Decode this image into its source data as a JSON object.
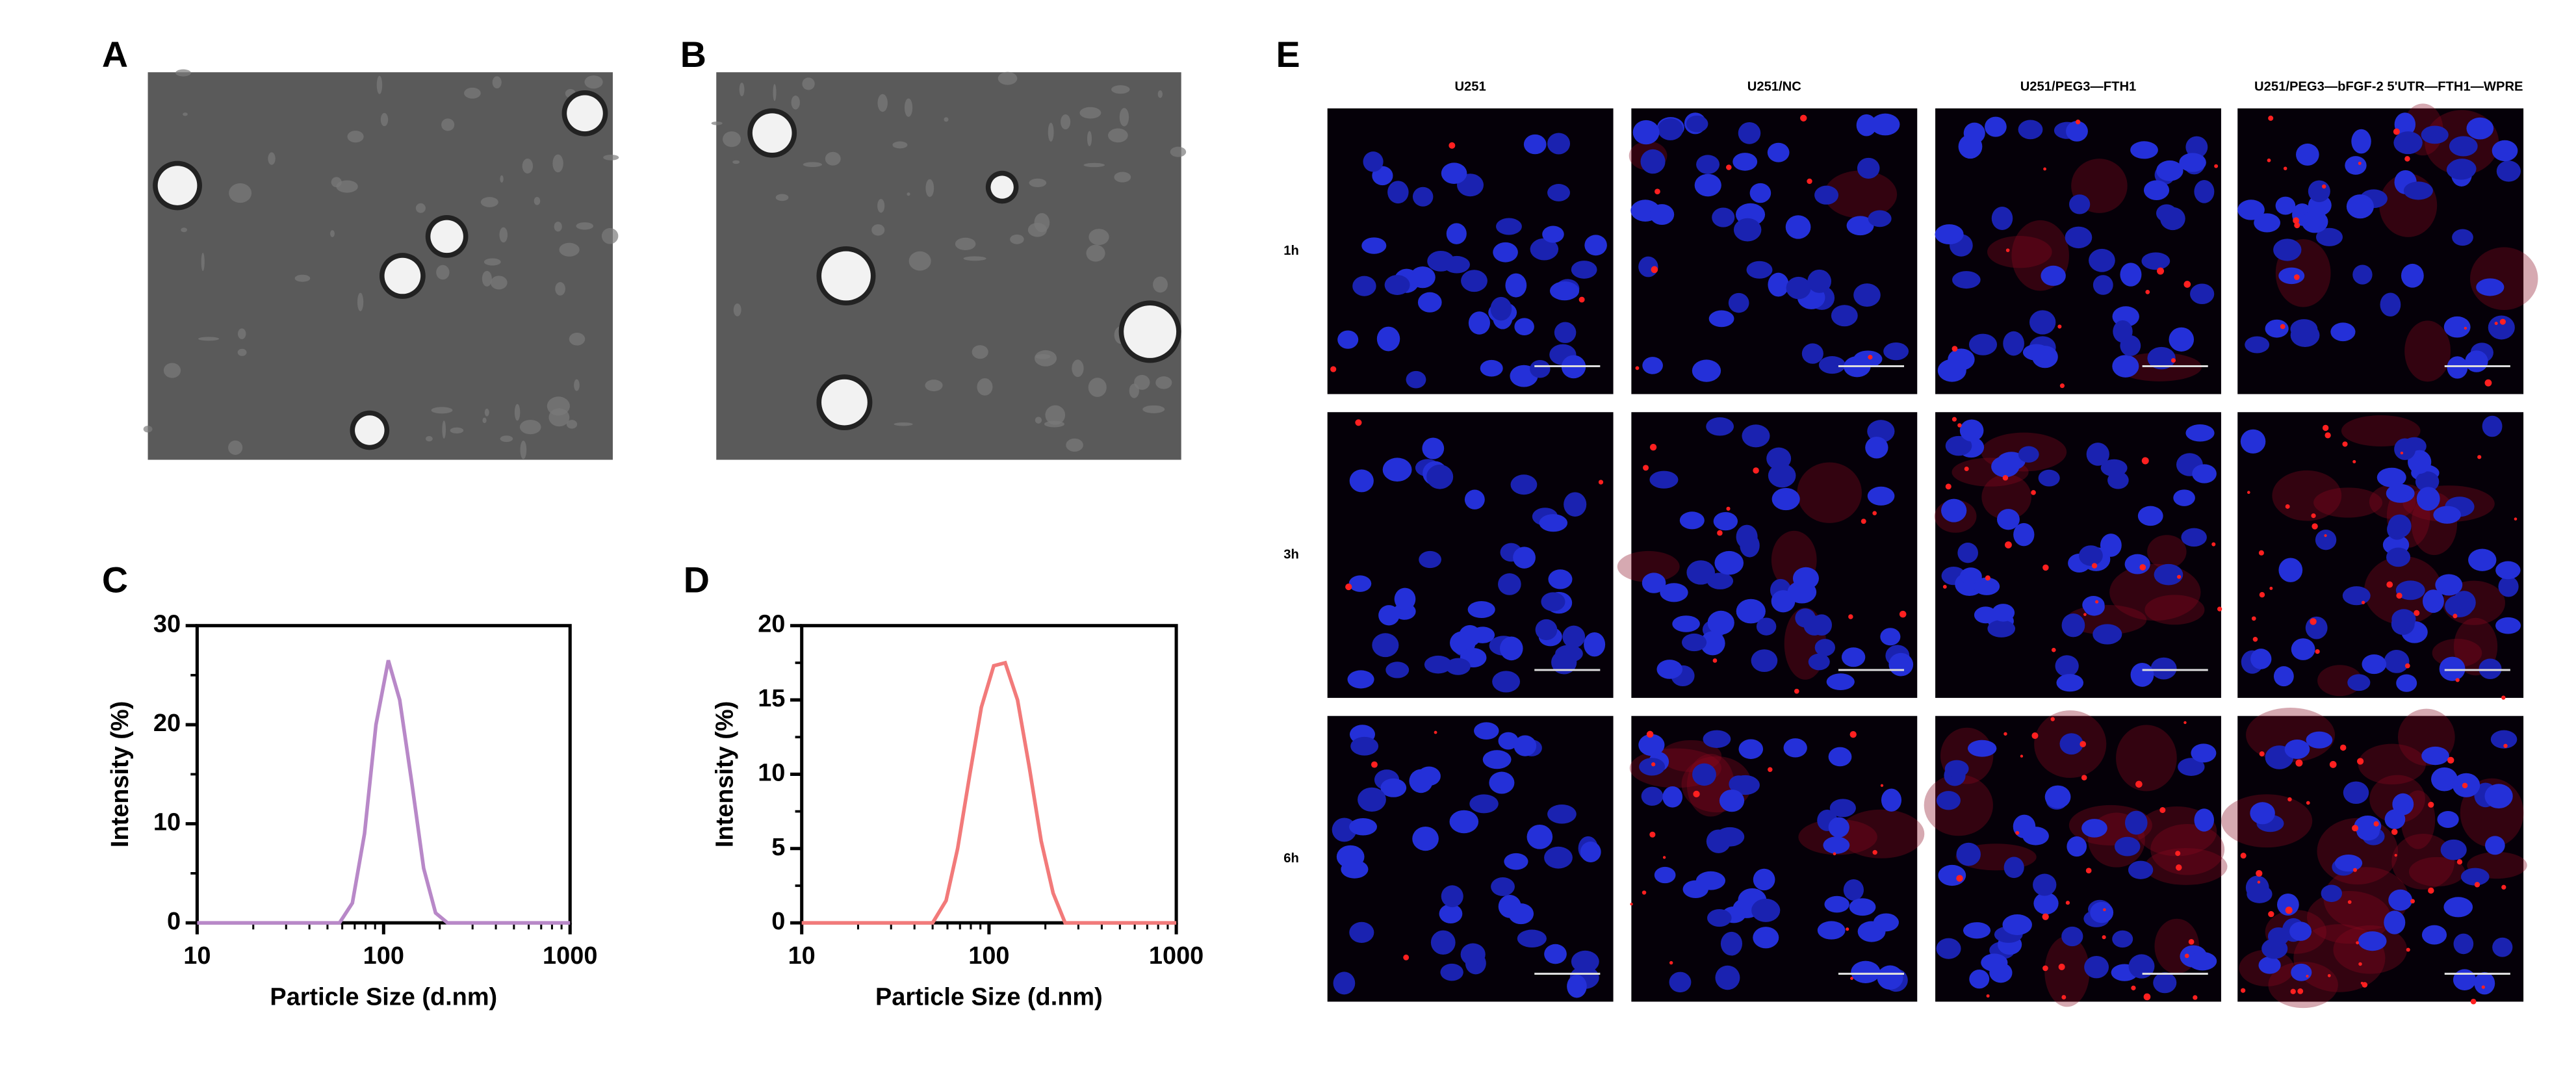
{
  "panel_labels": [
    "A",
    "B",
    "C",
    "D",
    "E"
  ],
  "microscopy": {
    "columns": [
      "U251",
      "U251/NC",
      "U251/PEG3—FTH1",
      "U251/PEG3—bFGF-2 5'UTR—FTH1—WPRE"
    ],
    "rows": [
      "1h",
      "3h",
      "6h"
    ]
  },
  "chart_data": [
    {
      "type": "line",
      "xlabel": "Particle Size (d.nm)",
      "ylabel": "Intensity (%)",
      "x": [
        10,
        20,
        40,
        58,
        68,
        79,
        91,
        106,
        122,
        142,
        164,
        190,
        220,
        400,
        1000
      ],
      "series": [
        {
          "color": "#b888c8",
          "values": [
            0,
            0,
            0,
            0,
            2,
            9,
            20,
            26.5,
            22.5,
            14,
            5.5,
            1,
            0,
            0,
            0
          ]
        }
      ],
      "xlim": [
        10,
        1000
      ],
      "xticks": [
        10,
        100,
        1000
      ],
      "log_x": true,
      "ylim": [
        0,
        30
      ],
      "yticks": [
        0,
        10,
        20,
        30
      ]
    },
    {
      "type": "line",
      "xlabel": "Particle Size (d.nm)",
      "ylabel": "Intensity (%)",
      "x": [
        10,
        20,
        40,
        50,
        59,
        68,
        79,
        91,
        106,
        122,
        142,
        164,
        190,
        220,
        255,
        500,
        1000
      ],
      "series": [
        {
          "color": "#f27a7a",
          "values": [
            0,
            0,
            0,
            0,
            1.5,
            5,
            10,
            14.5,
            17.3,
            17.5,
            15,
            10.5,
            5.5,
            2,
            0,
            0,
            0
          ]
        }
      ],
      "xlim": [
        10,
        1000
      ],
      "xticks": [
        10,
        100,
        1000
      ],
      "log_x": true,
      "ylim": [
        0,
        20
      ],
      "yticks": [
        0,
        5,
        10,
        15,
        20
      ]
    }
  ]
}
